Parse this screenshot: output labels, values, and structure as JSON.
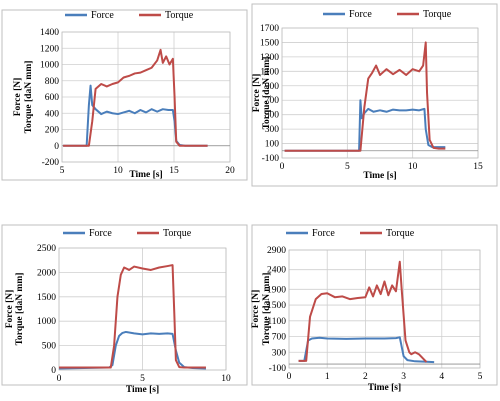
{
  "chart_data": [
    {
      "type": "line",
      "xlabel": "Time [s]",
      "ylabel_force": "Force [N]",
      "ylabel_torque": "Torque [daN mm]",
      "xlim": [
        5,
        20
      ],
      "ylim": [
        -200,
        1400
      ],
      "x_ticks": [
        "5",
        "10",
        "15",
        "20"
      ],
      "y_ticks": [
        "-200",
        "0",
        "200",
        "400",
        "600",
        "800",
        "1000",
        "1200",
        "1400"
      ],
      "series": [
        {
          "name": "Force",
          "color": "#4a7ebb",
          "x": [
            5.1,
            7.2,
            7.4,
            7.55,
            7.7,
            8.0,
            8.5,
            9.0,
            9.5,
            10.0,
            10.5,
            11.0,
            11.5,
            12.0,
            12.5,
            13.0,
            13.5,
            14.0,
            14.5,
            14.9,
            15.05,
            15.2,
            15.5,
            16.0,
            17.0,
            18.0
          ],
          "y": [
            0,
            0,
            500,
            740,
            500,
            450,
            390,
            420,
            400,
            390,
            410,
            430,
            400,
            440,
            410,
            450,
            420,
            450,
            440,
            440,
            300,
            60,
            10,
            0,
            0,
            0
          ]
        },
        {
          "name": "Torque",
          "color": "#be4b48",
          "x": [
            5.1,
            7.4,
            7.7,
            8.0,
            8.5,
            9.0,
            9.5,
            10.0,
            10.5,
            11.0,
            11.5,
            12.0,
            12.5,
            13.0,
            13.5,
            13.8,
            14.0,
            14.3,
            14.6,
            14.9,
            15.05,
            15.2,
            15.5,
            16.0,
            17.0,
            18.0
          ],
          "y": [
            0,
            0,
            300,
            700,
            760,
            730,
            760,
            780,
            840,
            860,
            890,
            900,
            930,
            960,
            1050,
            1180,
            1020,
            1100,
            1000,
            1070,
            600,
            50,
            0,
            0,
            0,
            0
          ]
        }
      ]
    },
    {
      "type": "line",
      "xlabel": "Time [s]",
      "ylabel_force": "Force [N]",
      "ylabel_torque": "Torque [daN mm]",
      "xlim": [
        0,
        15
      ],
      "ylim": [
        -100,
        1700
      ],
      "x_ticks": [
        "0",
        "5",
        "10",
        "15"
      ],
      "y_ticks": [
        "-100",
        "100",
        "300",
        "500",
        "700",
        "900",
        "1100",
        "1300",
        "1500",
        "1700"
      ],
      "series": [
        {
          "name": "Force",
          "color": "#4a7ebb",
          "x": [
            0.2,
            5.9,
            6.0,
            6.1,
            6.3,
            6.6,
            7.0,
            7.5,
            8.0,
            8.5,
            9.0,
            9.5,
            10.0,
            10.5,
            10.9,
            11.0,
            11.2,
            11.5,
            12.0,
            12.5
          ],
          "y": [
            0,
            0,
            700,
            450,
            520,
            580,
            540,
            560,
            540,
            570,
            560,
            560,
            570,
            560,
            580,
            300,
            80,
            50,
            50,
            50
          ]
        },
        {
          "name": "Torque",
          "color": "#be4b48",
          "x": [
            0.2,
            6.0,
            6.3,
            6.6,
            6.9,
            7.2,
            7.5,
            8.0,
            8.5,
            9.0,
            9.5,
            10.0,
            10.5,
            10.8,
            11.0,
            11.1,
            11.3,
            11.6,
            12.0,
            12.5
          ],
          "y": [
            0,
            0,
            600,
            1000,
            1080,
            1180,
            1050,
            1130,
            1060,
            1120,
            1050,
            1130,
            1100,
            1180,
            1500,
            800,
            150,
            40,
            30,
            30
          ]
        }
      ]
    },
    {
      "type": "line",
      "xlabel": "Time [s]",
      "ylabel_force": "Force [N]",
      "ylabel_torque": "Torque [daN mm]",
      "xlim": [
        0,
        10
      ],
      "ylim": [
        0,
        2500
      ],
      "x_ticks": [
        "0",
        "5",
        "10"
      ],
      "y_ticks": [
        "0",
        "500",
        "1000",
        "1500",
        "2000",
        "2500"
      ],
      "series": [
        {
          "name": "Force",
          "color": "#4a7ebb",
          "x": [
            0.0,
            3.0,
            3.2,
            3.4,
            3.6,
            3.8,
            4.0,
            4.5,
            5.0,
            5.5,
            6.0,
            6.5,
            6.8,
            7.0,
            7.2,
            7.5,
            8.0,
            8.8
          ],
          "y": [
            30,
            50,
            100,
            500,
            700,
            760,
            780,
            750,
            730,
            750,
            740,
            750,
            740,
            400,
            150,
            60,
            40,
            30
          ]
        },
        {
          "name": "Torque",
          "color": "#be4b48",
          "x": [
            0.0,
            3.1,
            3.3,
            3.5,
            3.7,
            3.9,
            4.2,
            4.5,
            5.0,
            5.5,
            6.0,
            6.5,
            6.8,
            6.9,
            7.0,
            7.2,
            7.5,
            8.0,
            8.8
          ],
          "y": [
            50,
            50,
            500,
            1500,
            1950,
            2100,
            2050,
            2120,
            2080,
            2050,
            2100,
            2130,
            2150,
            1200,
            200,
            60,
            50,
            50,
            50
          ]
        }
      ]
    },
    {
      "type": "line",
      "xlabel": "Time [s]",
      "ylabel_force": "Force [N]",
      "ylabel_torque": "Torque [daN mm]",
      "xlim": [
        0,
        5
      ],
      "ylim": [
        -100,
        2900
      ],
      "x_ticks": [
        "0",
        "1",
        "2",
        "3",
        "4",
        "5"
      ],
      "y_ticks": [
        "-100",
        "300",
        "700",
        "1100",
        "1500",
        "1900",
        "2400",
        "2900"
      ],
      "series": [
        {
          "name": "Force",
          "color": "#4a7ebb",
          "x": [
            0.25,
            0.4,
            0.5,
            0.6,
            0.8,
            1.0,
            1.5,
            2.0,
            2.5,
            2.8,
            2.9,
            3.0,
            3.1,
            3.3,
            3.6,
            3.8
          ],
          "y": [
            80,
            80,
            600,
            650,
            670,
            650,
            640,
            650,
            650,
            660,
            680,
            200,
            100,
            70,
            60,
            50
          ]
        },
        {
          "name": "Torque",
          "color": "#be4b48",
          "x": [
            0.25,
            0.45,
            0.55,
            0.7,
            0.85,
            1.0,
            1.2,
            1.4,
            1.6,
            1.8,
            2.0,
            2.1,
            2.2,
            2.3,
            2.4,
            2.5,
            2.6,
            2.7,
            2.8,
            2.9,
            2.95,
            3.05,
            3.15,
            3.2,
            3.3,
            3.4,
            3.6
          ],
          "y": [
            80,
            80,
            1200,
            1650,
            1780,
            1800,
            1700,
            1720,
            1650,
            1680,
            1700,
            1950,
            1720,
            2000,
            1780,
            2100,
            1750,
            2000,
            1850,
            2600,
            1900,
            600,
            300,
            250,
            300,
            250,
            50
          ]
        }
      ]
    }
  ]
}
